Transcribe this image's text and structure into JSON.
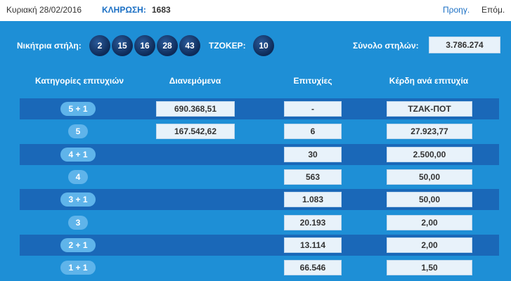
{
  "header": {
    "date": "Κυριακή 28/02/2016",
    "draw_label": "ΚΛΗΡΩΣΗ:",
    "draw_number": "1683",
    "prev": "Προηγ.",
    "next": "Επόμ."
  },
  "winning": {
    "label": "Νικήτρια στήλη:",
    "balls": [
      "2",
      "15",
      "16",
      "28",
      "43"
    ],
    "joker_label": "ΤΖΟΚΕΡ:",
    "joker": "10",
    "total_label": "Σύνολο στηλών:",
    "total": "3.786.274"
  },
  "table": {
    "headers": [
      "Κατηγορίες επιτυχιών",
      "Διανεμόμενα",
      "Επιτυχίες",
      "Κέρδη ανά επιτυχία"
    ],
    "rows": [
      {
        "category": "5 + 1",
        "distributed": "690.368,51",
        "winners": "-",
        "prize": "ΤΖΑΚ-ΠΟΤ"
      },
      {
        "category": "5",
        "distributed": "167.542,62",
        "winners": "6",
        "prize": "27.923,77"
      },
      {
        "category": "4 + 1",
        "distributed": "",
        "winners": "30",
        "prize": "2.500,00"
      },
      {
        "category": "4",
        "distributed": "",
        "winners": "563",
        "prize": "50,00"
      },
      {
        "category": "3 + 1",
        "distributed": "",
        "winners": "1.083",
        "prize": "50,00"
      },
      {
        "category": "3",
        "distributed": "",
        "winners": "20.193",
        "prize": "2,00"
      },
      {
        "category": "2 + 1",
        "distributed": "",
        "winners": "13.114",
        "prize": "2,00"
      },
      {
        "category": "1 + 1",
        "distributed": "",
        "winners": "66.546",
        "prize": "1,50"
      }
    ]
  }
}
